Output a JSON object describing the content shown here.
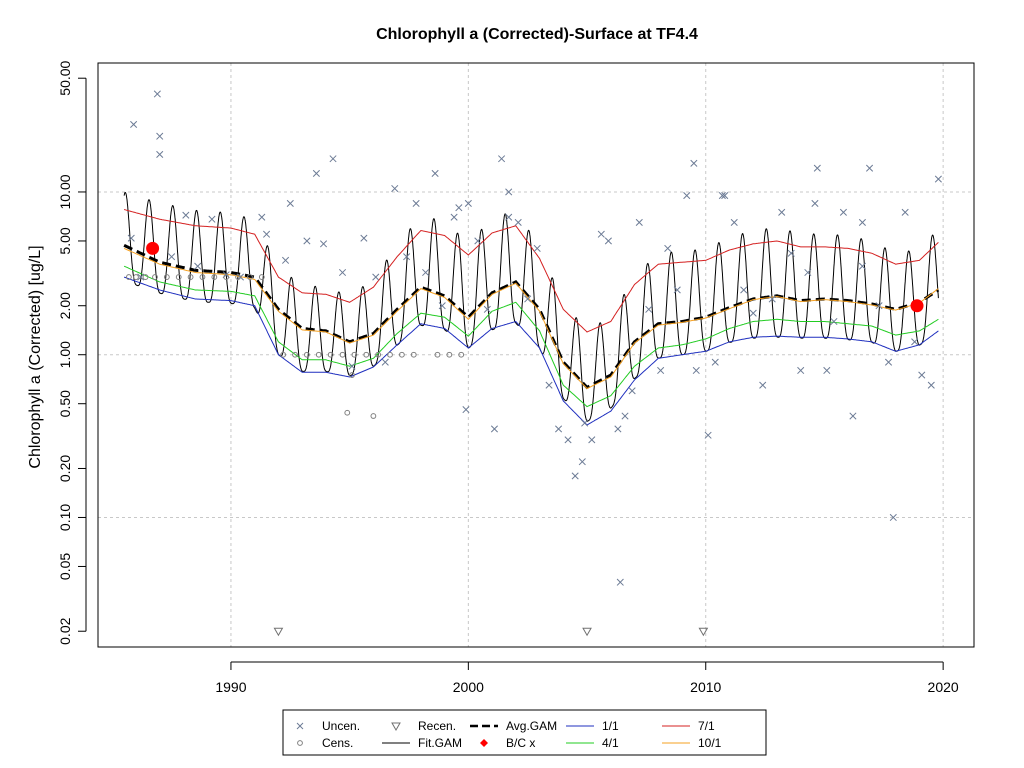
{
  "chart_data": {
    "type": "line",
    "title": "Chlorophyll a (Corrected)-Surface at TF4.4",
    "ylabel": "Chlorophyll a (Corrected) [ug/L]",
    "xlabel": "",
    "yscale": "log",
    "xlim": [
      1984.4,
      2021.3
    ],
    "ylim": [
      0.016,
      62
    ],
    "x_ticks": [
      1990,
      2000,
      2010,
      2020
    ],
    "x_tick_labels": [
      "1990",
      "2000",
      "2010",
      "2020"
    ],
    "y_ticks": [
      0.02,
      0.05,
      0.1,
      0.2,
      0.5,
      1.0,
      2.0,
      5.0,
      10.0,
      50.0
    ],
    "y_tick_labels": [
      "0.02",
      "0.05",
      "0.10",
      "0.20",
      "0.50",
      "1.00",
      "2.00",
      "5.00",
      "10.00",
      "50.00"
    ],
    "grid": true,
    "legend_position": "bottom",
    "legend": [
      {
        "label": "Uncen.",
        "kind": "x-marker",
        "color": "#6c7b95"
      },
      {
        "label": "Recen.",
        "kind": "triangle-marker",
        "color": "#707070"
      },
      {
        "label": "Avg.GAM",
        "kind": "dashed-line",
        "color": "#000000"
      },
      {
        "label": "1/1",
        "kind": "line",
        "color": "#1f2fbf"
      },
      {
        "label": "7/1",
        "kind": "line",
        "color": "#d42020"
      },
      {
        "label": "Cens.",
        "kind": "circle-marker",
        "color": "#808080"
      },
      {
        "label": "Fit.GAM",
        "kind": "line",
        "color": "#000000"
      },
      {
        "label": "B/C x",
        "kind": "dot-marker",
        "color": "#ff0000"
      },
      {
        "label": "4/1",
        "kind": "line",
        "color": "#22cc22"
      },
      {
        "label": "10/1",
        "kind": "line",
        "color": "#f5a020"
      }
    ],
    "series": [
      {
        "name": "Avg.GAM",
        "color": "#000000",
        "x": [
          1985.5,
          1987,
          1988.5,
          1990,
          1991,
          1992,
          1993,
          1994,
          1995,
          1996,
          1997,
          1998,
          1999,
          2000,
          2001,
          2002,
          2003,
          2004,
          2005,
          2006,
          2007,
          2008,
          2009,
          2010,
          2011,
          2012,
          2013,
          2014,
          2015,
          2016,
          2017,
          2018,
          2019,
          2019.8
        ],
        "values": [
          4.7,
          3.7,
          3.3,
          3.2,
          3.0,
          1.9,
          1.45,
          1.4,
          1.2,
          1.35,
          1.9,
          2.6,
          2.3,
          1.7,
          2.4,
          2.8,
          1.9,
          0.9,
          0.63,
          0.75,
          1.2,
          1.55,
          1.6,
          1.7,
          1.95,
          2.2,
          2.3,
          2.15,
          2.2,
          2.15,
          2.05,
          1.9,
          2.1,
          2.5
        ]
      },
      {
        "name": "1/1",
        "color": "#1f2fbf",
        "x": [
          1985.5,
          1987,
          1988.5,
          1990,
          1991,
          1992,
          1993,
          1994,
          1995,
          1996,
          1997,
          1998,
          1999,
          2000,
          2001,
          2002,
          2003,
          2004,
          2005,
          2006,
          2007,
          2008,
          2009,
          2010,
          2011,
          2012,
          2013,
          2014,
          2015,
          2016,
          2017,
          2018,
          2019,
          2019.8
        ],
        "values": [
          3.0,
          2.5,
          2.2,
          2.15,
          2.0,
          1.0,
          0.78,
          0.78,
          0.73,
          0.84,
          1.15,
          1.55,
          1.45,
          1.1,
          1.45,
          1.6,
          1.1,
          0.52,
          0.37,
          0.45,
          0.7,
          0.95,
          1.0,
          1.05,
          1.2,
          1.28,
          1.3,
          1.28,
          1.28,
          1.25,
          1.2,
          1.05,
          1.15,
          1.4
        ]
      },
      {
        "name": "4/1",
        "color": "#22cc22",
        "x": [
          1985.5,
          1987,
          1988.5,
          1990,
          1991,
          1992,
          1993,
          1994,
          1995,
          1996,
          1997,
          1998,
          1999,
          2000,
          2001,
          2002,
          2003,
          2004,
          2005,
          2006,
          2007,
          2008,
          2009,
          2010,
          2011,
          2012,
          2013,
          2014,
          2015,
          2016,
          2017,
          2018,
          2019,
          2019.8
        ],
        "values": [
          3.5,
          2.8,
          2.5,
          2.45,
          2.3,
          1.2,
          0.93,
          0.93,
          0.85,
          0.95,
          1.35,
          1.8,
          1.7,
          1.3,
          1.85,
          2.1,
          1.4,
          0.65,
          0.48,
          0.56,
          0.85,
          1.1,
          1.15,
          1.25,
          1.45,
          1.6,
          1.65,
          1.6,
          1.6,
          1.55,
          1.5,
          1.32,
          1.4,
          1.65
        ]
      },
      {
        "name": "7/1",
        "color": "#d42020",
        "x": [
          1985.5,
          1987,
          1988.5,
          1990,
          1991,
          1992,
          1993,
          1994,
          1995,
          1996,
          1997,
          1998,
          1999,
          2000,
          2001,
          2002,
          2003,
          2004,
          2005,
          2006,
          2007,
          2008,
          2009,
          2010,
          2011,
          2012,
          2013,
          2014,
          2015,
          2016,
          2017,
          2018,
          2019,
          2019.8
        ],
        "values": [
          7.8,
          6.8,
          6.2,
          6.0,
          5.5,
          3.0,
          2.4,
          2.35,
          2.1,
          2.6,
          4.0,
          5.8,
          5.4,
          4.1,
          5.6,
          6.2,
          3.9,
          1.9,
          1.38,
          1.6,
          2.7,
          3.6,
          3.7,
          3.8,
          4.4,
          4.8,
          5.0,
          4.6,
          4.6,
          4.5,
          4.2,
          3.6,
          3.8,
          4.9
        ]
      },
      {
        "name": "10/1",
        "color": "#f5a020",
        "x": [
          1985.5,
          1987,
          1988.5,
          1990,
          1991,
          1992,
          1993,
          1994,
          1995,
          1996,
          1997,
          1998,
          1999,
          2000,
          2001,
          2002,
          2003,
          2004,
          2005,
          2006,
          2007,
          2008,
          2009,
          2010,
          2011,
          2012,
          2013,
          2014,
          2015,
          2016,
          2017,
          2018,
          2019,
          2019.8
        ],
        "values": [
          4.5,
          3.6,
          3.2,
          3.1,
          2.9,
          1.85,
          1.42,
          1.38,
          1.18,
          1.32,
          1.85,
          2.55,
          2.25,
          1.65,
          2.35,
          2.75,
          1.85,
          0.88,
          0.62,
          0.73,
          1.18,
          1.52,
          1.58,
          1.68,
          1.92,
          2.18,
          2.28,
          2.12,
          2.18,
          2.12,
          2.02,
          1.88,
          2.08,
          2.55
        ]
      }
    ],
    "fit_gam": {
      "name": "Fit.GAM",
      "color": "#000000",
      "x_start": 1985.5,
      "x_end": 2019.8,
      "seasonal_peak_month_fraction": 0.55,
      "note_values_follow": "Avg.GAM trend modulated seasonally between 1/1 and 7/1 envelopes"
    },
    "bc_points": {
      "name": "B/C x",
      "color": "#ff0000",
      "x": [
        1986.7,
        2018.9
      ],
      "values": [
        4.5,
        2.0
      ]
    },
    "uncensored_points": {
      "name": "Uncen.",
      "color": "#6c7b95",
      "x": [
        1985.9,
        1986.9,
        1987.0,
        1987.0,
        1985.8,
        1986.2,
        1987.5,
        1988.1,
        1988.6,
        1989.2,
        1989.8,
        1990.4,
        1991.3,
        1991.5,
        1992.3,
        1992.5,
        1993.2,
        1993.6,
        1993.9,
        1994.3,
        1994.7,
        1995.1,
        1995.6,
        1996.1,
        1996.5,
        1996.9,
        1997.4,
        1997.8,
        1998.2,
        1998.6,
        1998.9,
        1999.4,
        1999.6,
        1999.9,
        2000.4,
        2000.8,
        2001.1,
        2001.4,
        2001.7,
        2002.1,
        2002.5,
        2002.9,
        2003.4,
        2003.8,
        2004.2,
        2004.5,
        2004.8,
        2004.9,
        2005.2,
        2005.6,
        2005.9,
        2006.3,
        2006.6,
        2006.9,
        2007.2,
        2007.6,
        2008.1,
        2008.4,
        2008.8,
        2009.2,
        2009.6,
        2010.1,
        2010.4,
        2010.8,
        2011.2,
        2011.6,
        2012.0,
        2012.4,
        2012.8,
        2013.2,
        2013.6,
        2014.0,
        2014.3,
        2014.7,
        2015.1,
        2015.4,
        2015.8,
        2016.2,
        2016.6,
        2016.9,
        2017.3,
        2017.7,
        2017.9,
        2018.4,
        2018.8,
        2019.1,
        2019.5,
        2019.8,
        2006.4,
        2000.0,
        2001.7,
        2009.5,
        2010.7,
        2014.6,
        2016.6
      ],
      "values": [
        26,
        40,
        22,
        17,
        5.2,
        3.0,
        4.0,
        7.2,
        3.5,
        6.8,
        3.1,
        3.0,
        7.0,
        5.5,
        3.8,
        8.5,
        5.0,
        13.0,
        4.8,
        16.0,
        3.2,
        0.85,
        5.2,
        3.0,
        0.9,
        10.5,
        4.0,
        8.5,
        3.2,
        13.0,
        2.0,
        7.0,
        8.0,
        0.46,
        5.0,
        1.9,
        0.35,
        16.0,
        10.0,
        6.5,
        2.2,
        4.5,
        0.65,
        0.35,
        0.3,
        0.18,
        0.22,
        0.38,
        0.3,
        5.5,
        5.0,
        0.35,
        0.42,
        0.6,
        6.5,
        1.9,
        0.8,
        4.5,
        2.5,
        9.5,
        0.8,
        0.32,
        0.9,
        9.5,
        6.5,
        2.5,
        1.8,
        0.65,
        2.2,
        7.5,
        4.2,
        0.8,
        3.2,
        14.0,
        0.8,
        1.6,
        7.5,
        0.42,
        3.5,
        14.0,
        2.0,
        0.9,
        0.1,
        7.5,
        1.2,
        0.75,
        0.65,
        12.0,
        0.04,
        8.5,
        7.0,
        15.0,
        9.5,
        8.5,
        6.5
      ]
    },
    "censored_points": {
      "name": "Cens.",
      "color": "#808080",
      "x": [
        1985.7,
        1986.0,
        1986.4,
        1986.8,
        1987.3,
        1987.8,
        1988.3,
        1988.8,
        1989.3,
        1989.8,
        1990.3,
        1990.8,
        1991.3,
        1992.2,
        1992.7,
        1993.2,
        1993.7,
        1994.2,
        1994.7,
        1995.2,
        1995.7,
        1996.2,
        1996.7,
        1997.2,
        1997.7,
        1998.7,
        1999.2,
        1999.7,
        1994.9,
        1996.0,
        1995.1
      ],
      "values": [
        3.0,
        3.0,
        3.0,
        3.0,
        3.0,
        3.0,
        3.0,
        3.0,
        3.0,
        3.0,
        3.0,
        3.0,
        3.0,
        1.0,
        1.0,
        1.0,
        1.0,
        1.0,
        1.0,
        1.0,
        1.0,
        1.0,
        1.0,
        1.0,
        1.0,
        1.0,
        1.0,
        1.0,
        0.44,
        0.42,
        0.75
      ]
    },
    "recensored_points": {
      "name": "Recen.",
      "color": "#707070",
      "x": [
        1992.0,
        2005.0,
        2009.9
      ],
      "values": [
        0.02,
        0.02,
        0.02
      ]
    }
  }
}
